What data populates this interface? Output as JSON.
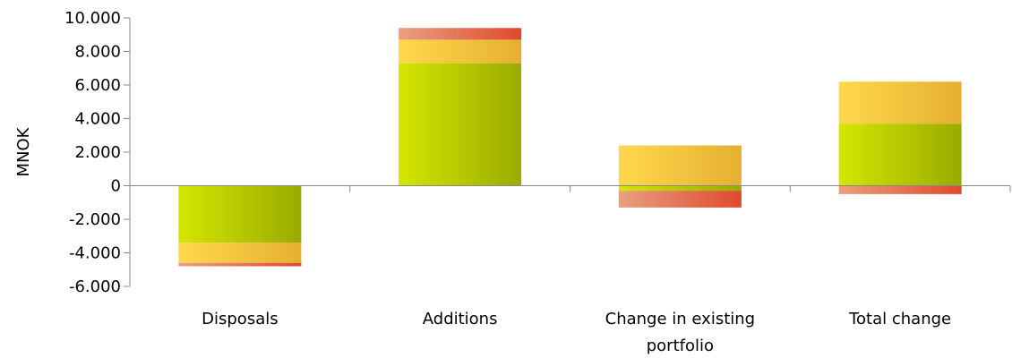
{
  "chart_data": {
    "type": "bar",
    "stacked": true,
    "ylabel": "MNOK",
    "ylim": [
      -6000,
      10000
    ],
    "yticks": [
      10000,
      8000,
      6000,
      4000,
      2000,
      0,
      -2000,
      -4000,
      -6000
    ],
    "ytick_labels": [
      "10.000",
      "8.000",
      "6.000",
      "4.000",
      "2.000",
      "0",
      "-2.000",
      "-4.000",
      "-6.000"
    ],
    "categories": [
      [
        "Disposals"
      ],
      [
        "Additions"
      ],
      [
        "Change in existing",
        "portfolio"
      ],
      [
        "Total change"
      ]
    ],
    "series": [
      {
        "color_from": "#d4e600",
        "color_to": "#9aab00",
        "values": [
          -3400,
          7300,
          -300,
          3700
        ]
      },
      {
        "color_from": "#ffd84d",
        "color_to": "#e5b030",
        "values": [
          -1200,
          1400,
          2400,
          2500
        ]
      },
      {
        "color_from": "#e8a080",
        "color_to": "#e04830",
        "values": [
          -200,
          700,
          -1000,
          -500
        ]
      }
    ],
    "grid": false,
    "legend": "none"
  }
}
